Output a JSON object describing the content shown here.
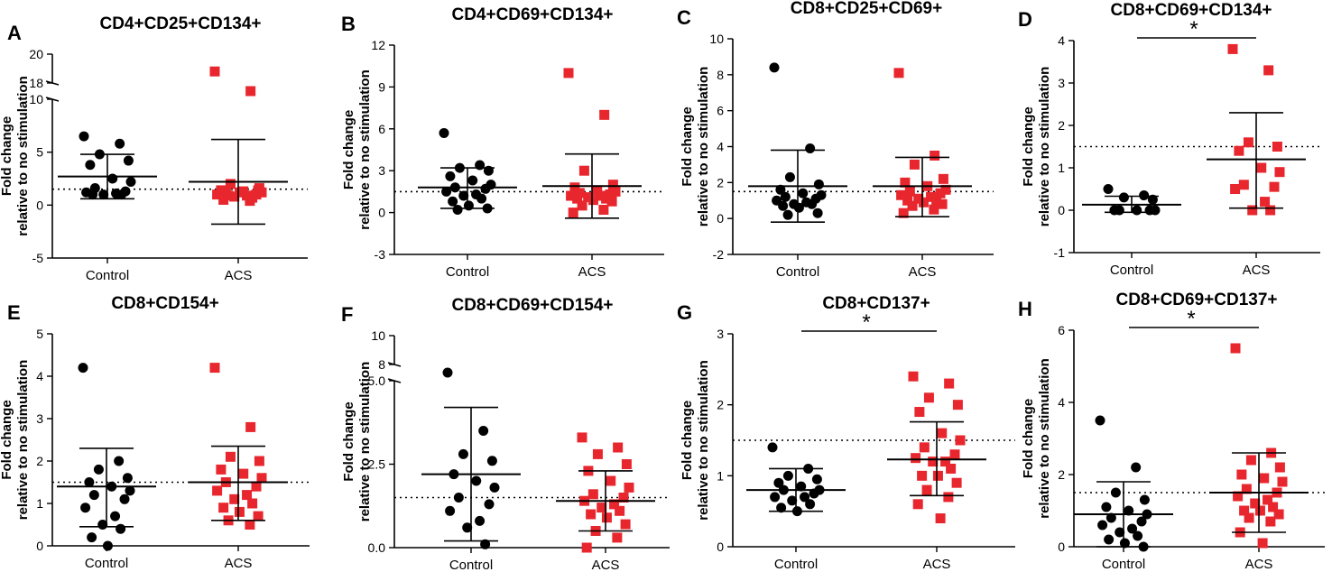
{
  "figure": {
    "y_axis_label_line1": "Fold change",
    "y_axis_label_line2": "relative to no stimulation",
    "groups": [
      "Control",
      "ACS"
    ],
    "reference_line_y": 1.5,
    "colors": {
      "control": "#000000",
      "acs": "#e8262d"
    }
  },
  "chart_data": [
    {
      "panel": "A",
      "type": "scatter",
      "title": "CD4+CD25+CD134+",
      "xlabel": "",
      "ylabel": "Fold change relative to no stimulation",
      "ylim": [
        -5,
        20
      ],
      "yticks": [
        -5,
        0,
        5,
        10,
        18,
        20
      ],
      "axis_break": [
        10,
        18
      ],
      "reference_line": 1.5,
      "significance": "",
      "series": [
        {
          "name": "Control",
          "values": [
            6.5,
            5.8,
            4.8,
            4.2,
            3.8,
            2.5,
            2.2,
            1.6,
            1.3,
            1.2,
            1.1,
            1.0,
            1.0,
            1.0
          ],
          "mean": 2.7,
          "sd_upper": 4.8,
          "sd_lower": 0.6
        },
        {
          "name": "ACS",
          "values": [
            18.8,
            14.7,
            2.0,
            1.6,
            1.4,
            1.3,
            1.2,
            1.1,
            1.0,
            1.0,
            0.9,
            0.8,
            0.7,
            0.5,
            1.2,
            1.4,
            0.9,
            0.4
          ],
          "mean": 2.2,
          "sd_upper": 6.2,
          "sd_lower": -1.8
        }
      ]
    },
    {
      "panel": "B",
      "type": "scatter",
      "title": "CD4+CD69+CD134+",
      "xlabel": "",
      "ylabel": "Fold change relative to no stimulation",
      "ylim": [
        -3,
        12
      ],
      "yticks": [
        -3,
        0,
        3,
        6,
        9,
        12
      ],
      "reference_line": 1.5,
      "significance": "",
      "series": [
        {
          "name": "Control",
          "values": [
            5.7,
            3.4,
            3.2,
            3.0,
            2.6,
            2.3,
            2.0,
            1.8,
            1.7,
            1.5,
            1.3,
            1.2,
            1.0,
            0.8,
            0.5,
            0.3,
            0.2
          ],
          "mean": 1.8,
          "sd_upper": 3.2,
          "sd_lower": 0.3
        },
        {
          "name": "ACS",
          "values": [
            10.0,
            7.0,
            3.0,
            2.0,
            1.8,
            1.6,
            1.5,
            1.4,
            1.3,
            1.2,
            1.2,
            1.1,
            1.0,
            1.0,
            0.9,
            0.8,
            0.5,
            0.2,
            0.0
          ],
          "mean": 1.9,
          "sd_upper": 4.2,
          "sd_lower": -0.4
        }
      ]
    },
    {
      "panel": "C",
      "type": "scatter",
      "title": "CD8+CD25+CD69+",
      "xlabel": "",
      "ylabel": "Fold change relative to no stimulation",
      "ylim": [
        -2,
        10
      ],
      "yticks": [
        -2,
        0,
        2,
        4,
        6,
        8,
        10
      ],
      "reference_line": 1.5,
      "significance": "",
      "series": [
        {
          "name": "Control",
          "values": [
            8.4,
            3.9,
            2.3,
            1.9,
            1.6,
            1.4,
            1.3,
            1.2,
            1.1,
            1.0,
            0.9,
            0.8,
            0.8,
            0.7,
            0.6,
            0.3,
            0.2
          ],
          "mean": 1.8,
          "sd_upper": 3.8,
          "sd_lower": -0.2
        },
        {
          "name": "ACS",
          "values": [
            8.1,
            3.5,
            3.0,
            2.2,
            2.0,
            1.8,
            1.6,
            1.5,
            1.4,
            1.3,
            1.2,
            1.1,
            1.0,
            1.0,
            0.9,
            0.8,
            0.7,
            0.5,
            0.3
          ],
          "mean": 1.8,
          "sd_upper": 3.4,
          "sd_lower": 0.1
        }
      ]
    },
    {
      "panel": "D",
      "type": "scatter",
      "title": "CD8+CD69+CD134+",
      "xlabel": "",
      "ylabel": "Fold change relative to no stimulation",
      "ylim": [
        -1,
        4
      ],
      "yticks": [
        -1,
        0,
        1,
        2,
        3,
        4
      ],
      "reference_line": 1.5,
      "significance": "*",
      "series": [
        {
          "name": "Control",
          "values": [
            0.5,
            0.35,
            0.3,
            0.25,
            0.0,
            0.0,
            0.0,
            0.0,
            0.0
          ],
          "mean": 0.13,
          "sd_upper": 0.33,
          "sd_lower": -0.05
        },
        {
          "name": "ACS",
          "values": [
            3.8,
            3.3,
            1.6,
            1.5,
            1.4,
            1.0,
            0.9,
            0.6,
            0.55,
            0.5,
            0.2,
            0.0,
            0.0
          ],
          "mean": 1.2,
          "sd_upper": 2.3,
          "sd_lower": 0.05
        }
      ]
    },
    {
      "panel": "E",
      "type": "scatter",
      "title": "CD8+CD154+",
      "xlabel": "",
      "ylabel": "Fold change relative to no stimulation",
      "ylim": [
        0,
        5
      ],
      "yticks": [
        0,
        1,
        2,
        3,
        4,
        5
      ],
      "reference_line": 1.5,
      "significance": "",
      "series": [
        {
          "name": "Control",
          "values": [
            4.2,
            2.0,
            1.8,
            1.6,
            1.5,
            1.4,
            1.3,
            1.2,
            1.1,
            0.9,
            0.7,
            0.5,
            0.4,
            0.2,
            0.0
          ],
          "mean": 1.4,
          "sd_upper": 2.3,
          "sd_lower": 0.45
        },
        {
          "name": "ACS",
          "values": [
            4.2,
            2.8,
            2.1,
            2.0,
            1.8,
            1.7,
            1.6,
            1.5,
            1.4,
            1.3,
            1.2,
            1.1,
            1.0,
            0.9,
            0.8,
            0.7,
            0.6,
            0.5
          ],
          "mean": 1.5,
          "sd_upper": 2.35,
          "sd_lower": 0.6
        }
      ]
    },
    {
      "panel": "F",
      "type": "scatter",
      "title": "CD8+CD69+CD154+",
      "xlabel": "",
      "ylabel": "Fold change relative to no stimulation",
      "ylim": [
        0,
        10
      ],
      "yticks": [
        0.0,
        2.5,
        5.0,
        8,
        10
      ],
      "axis_break": [
        5,
        8
      ],
      "reference_line": 1.5,
      "significance": "",
      "series": [
        {
          "name": "Control",
          "values": [
            7.7,
            3.5,
            2.8,
            2.6,
            2.2,
            2.0,
            1.8,
            1.5,
            1.3,
            1.1,
            0.8,
            0.6,
            0.1
          ],
          "mean": 2.2,
          "sd_upper": 4.2,
          "sd_lower": 0.2
        },
        {
          "name": "ACS",
          "values": [
            3.3,
            3.0,
            2.8,
            2.5,
            2.3,
            2.0,
            1.8,
            1.6,
            1.5,
            1.4,
            1.3,
            1.2,
            1.1,
            1.0,
            0.9,
            0.7,
            0.5,
            0.3,
            0.0
          ],
          "mean": 1.4,
          "sd_upper": 2.3,
          "sd_lower": 0.5
        }
      ]
    },
    {
      "panel": "G",
      "type": "scatter",
      "title": "CD8+CD137+",
      "xlabel": "",
      "ylabel": "Fold change relative to no stimulation",
      "ylim": [
        0,
        3
      ],
      "yticks": [
        0,
        1,
        2,
        3
      ],
      "reference_line": 1.5,
      "significance": "*",
      "series": [
        {
          "name": "Control",
          "values": [
            1.4,
            1.1,
            1.0,
            0.95,
            0.9,
            0.85,
            0.8,
            0.8,
            0.75,
            0.7,
            0.7,
            0.65,
            0.6,
            0.55,
            0.5
          ],
          "mean": 0.8,
          "sd_upper": 1.1,
          "sd_lower": 0.5
        },
        {
          "name": "ACS",
          "values": [
            2.4,
            2.3,
            2.1,
            2.0,
            1.9,
            1.6,
            1.5,
            1.4,
            1.3,
            1.25,
            1.2,
            1.2,
            1.1,
            1.0,
            1.0,
            0.9,
            0.8,
            0.7,
            0.6,
            0.4
          ],
          "mean": 1.23,
          "sd_upper": 1.76,
          "sd_lower": 0.72
        }
      ]
    },
    {
      "panel": "H",
      "type": "scatter",
      "title": "CD8+CD69+CD137+",
      "xlabel": "",
      "ylabel": "Fold change relative to no stimulation",
      "ylim": [
        0,
        6
      ],
      "yticks": [
        0,
        2,
        4,
        6
      ],
      "reference_line": 1.5,
      "significance": "*",
      "series": [
        {
          "name": "Control",
          "values": [
            3.5,
            2.2,
            1.5,
            1.3,
            1.1,
            1.0,
            0.9,
            0.8,
            0.7,
            0.6,
            0.5,
            0.4,
            0.3,
            0.2,
            0.1,
            0.0
          ],
          "mean": 0.9,
          "sd_upper": 1.8,
          "sd_lower": 0.0
        },
        {
          "name": "ACS",
          "values": [
            5.5,
            2.6,
            2.4,
            2.2,
            2.0,
            1.9,
            1.8,
            1.6,
            1.5,
            1.4,
            1.3,
            1.2,
            1.1,
            1.0,
            1.0,
            0.9,
            0.8,
            0.7,
            0.4,
            0.1
          ],
          "mean": 1.5,
          "sd_upper": 2.6,
          "sd_lower": 0.4
        }
      ]
    }
  ]
}
